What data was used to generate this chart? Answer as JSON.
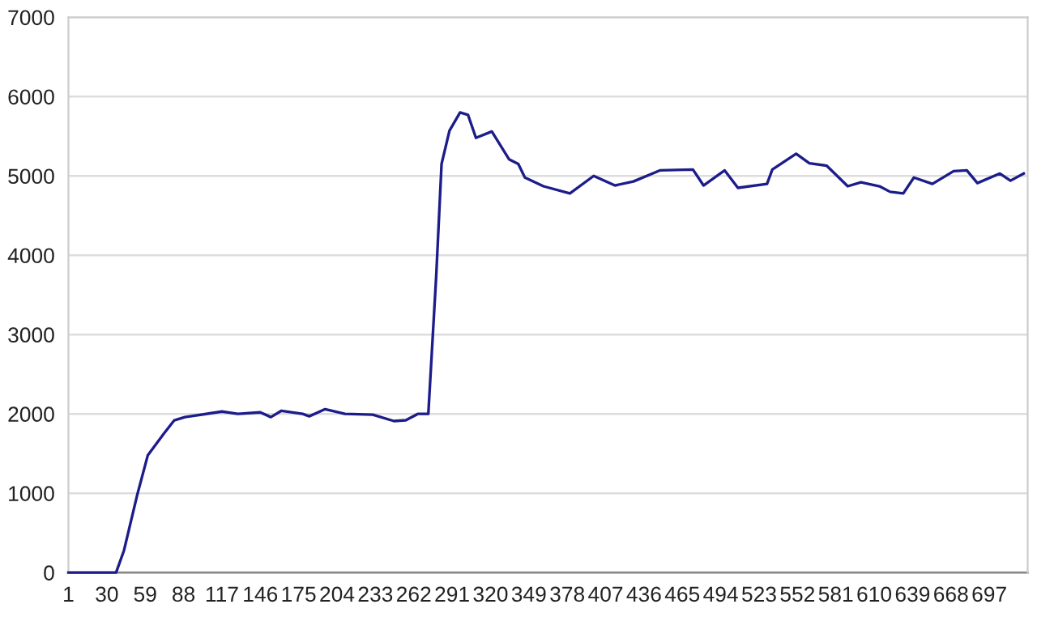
{
  "chart_data": {
    "type": "line",
    "x": [
      1,
      37,
      43,
      53,
      61,
      73,
      81,
      89,
      117,
      129,
      146,
      154,
      162,
      178,
      183,
      195,
      210,
      231,
      247,
      256,
      265,
      273,
      279,
      283,
      289,
      297,
      303,
      309,
      321,
      334,
      341,
      346,
      360,
      380,
      398,
      414,
      428,
      448,
      473,
      481,
      497,
      507,
      529,
      533,
      551,
      561,
      574,
      590,
      600,
      614,
      622,
      632,
      640,
      654,
      670,
      680,
      688,
      705,
      713,
      723
    ],
    "series": [
      {
        "color": "#1c1c8a",
        "values": [
          0,
          0,
          280,
          980,
          1480,
          1750,
          1920,
          1960,
          2030,
          2000,
          2020,
          1960,
          2040,
          2000,
          1970,
          2060,
          2000,
          1990,
          1910,
          1920,
          2000,
          2000,
          3750,
          5150,
          5570,
          5800,
          5770,
          5480,
          5560,
          5210,
          5150,
          4980,
          4870,
          4780,
          5000,
          4880,
          4930,
          5070,
          5080,
          4880,
          5070,
          4850,
          4900,
          5080,
          5280,
          5160,
          5130,
          4870,
          4920,
          4870,
          4800,
          4780,
          4980,
          4900,
          5060,
          5070,
          4910,
          5030,
          4940,
          5030
        ]
      }
    ],
    "xlim": [
      1,
      726
    ],
    "xticks": [
      1,
      30,
      59,
      88,
      117,
      146,
      175,
      204,
      233,
      262,
      291,
      320,
      349,
      378,
      407,
      436,
      465,
      494,
      523,
      552,
      581,
      610,
      639,
      668,
      697
    ],
    "ylim": [
      0,
      7000
    ],
    "yticks": [
      0,
      1000,
      2000,
      3000,
      4000,
      5000,
      6000,
      7000
    ],
    "grid": "y",
    "marker": "none",
    "line_style": "solid"
  }
}
